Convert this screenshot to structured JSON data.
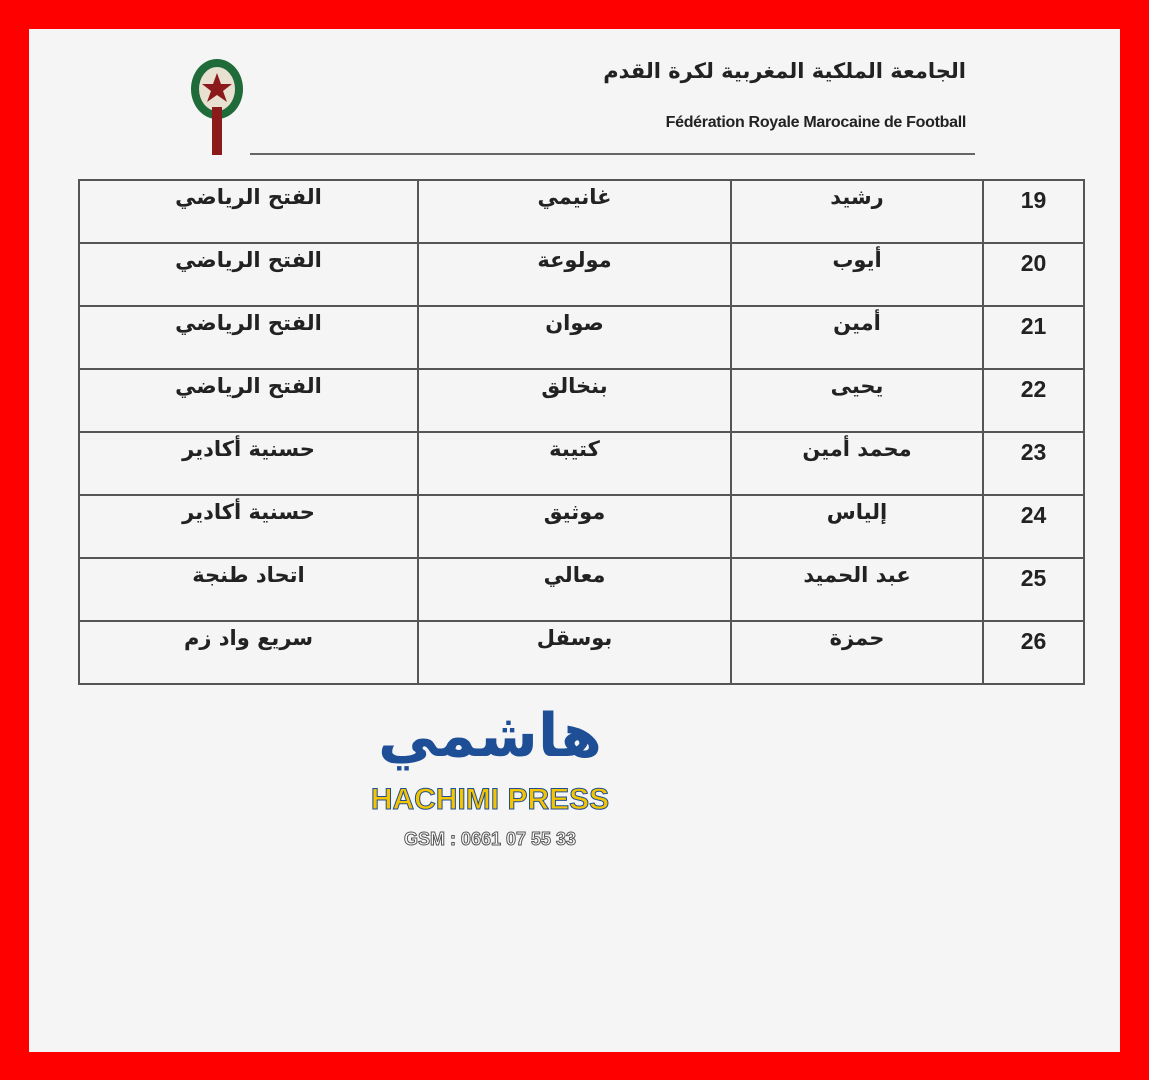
{
  "header": {
    "title_ar": "الجامعة الملكية المغربية لكرة القدم",
    "title_fr": "Fédération Royale Marocaine de Football"
  },
  "colors": {
    "border": "#fe0000",
    "logo_green": "#1f6b3a",
    "logo_red": "#8b1a1a",
    "watermark_blue": "#1d4e96",
    "watermark_yellow": "#f5c400"
  },
  "table": {
    "rows": [
      {
        "num": "19",
        "first_name": "رشيد",
        "last_name": "غانيمي",
        "club": "الفتح الرياضي"
      },
      {
        "num": "20",
        "first_name": "أيوب",
        "last_name": "مولوعة",
        "club": "الفتح الرياضي"
      },
      {
        "num": "21",
        "first_name": "أمين",
        "last_name": "صوان",
        "club": "الفتح الرياضي"
      },
      {
        "num": "22",
        "first_name": "يحيى",
        "last_name": "بنخالق",
        "club": "الفتح الرياضي"
      },
      {
        "num": "23",
        "first_name": "محمد أمين",
        "last_name": "كتيبة",
        "club": "حسنية أكادير"
      },
      {
        "num": "24",
        "first_name": "إلياس",
        "last_name": "موثيق",
        "club": "حسنية أكادير"
      },
      {
        "num": "25",
        "first_name": "عبد الحميد",
        "last_name": "معالي",
        "club": "اتحاد طنجة"
      },
      {
        "num": "26",
        "first_name": "حمزة",
        "last_name": "بوسقل",
        "club": "سريع واد زم"
      }
    ]
  },
  "watermark": {
    "arabic": "هاشمي",
    "name": "HACHIMI PRESS",
    "phone": "GSM : 0661 07 55 33"
  }
}
